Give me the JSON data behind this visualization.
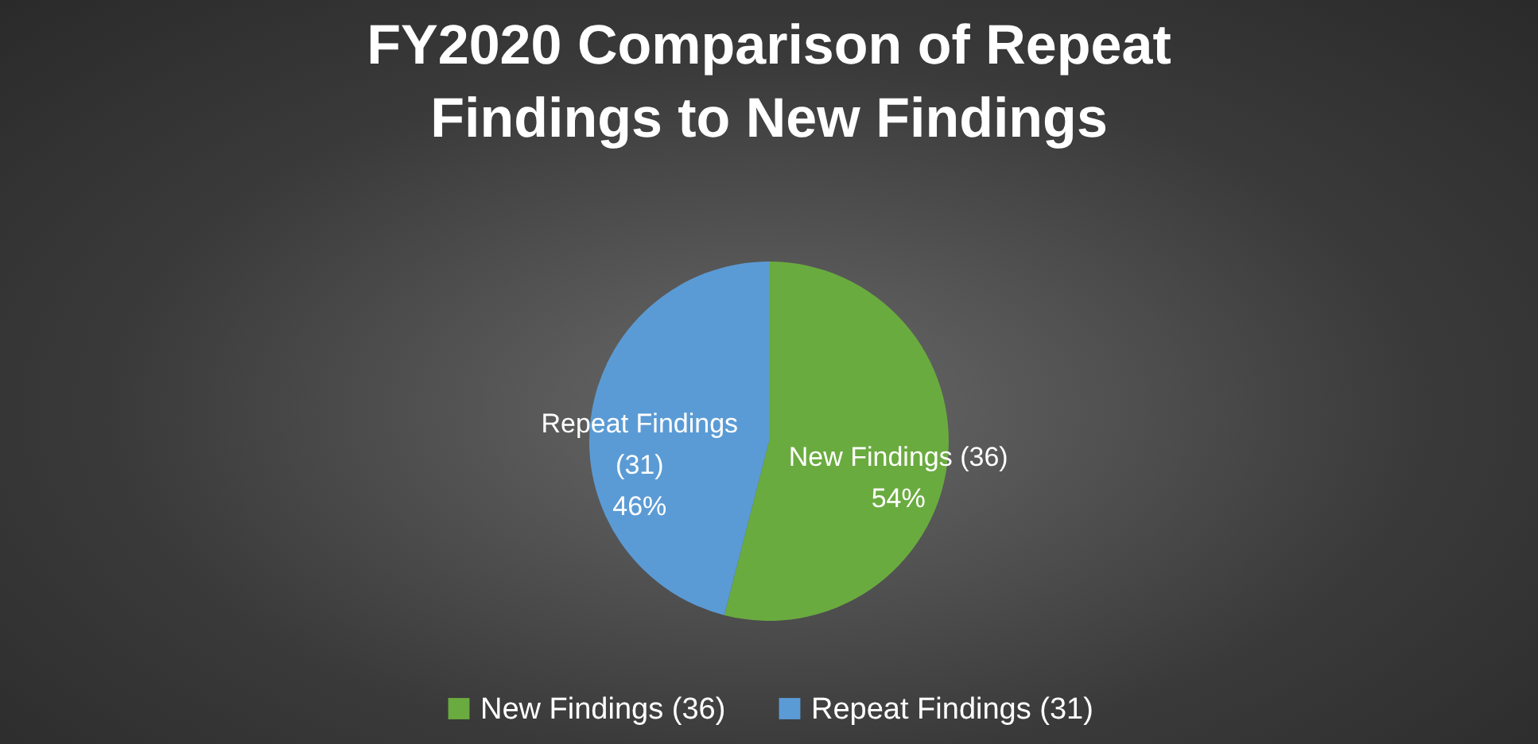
{
  "chart_data": {
    "type": "pie",
    "title": "FY2020 Comparison of Repeat Findings to New Findings",
    "categories": [
      "New Findings (36)",
      "Repeat Findings (31)"
    ],
    "values": [
      54,
      46
    ],
    "value_labels": [
      "54%",
      "46%"
    ],
    "colors": [
      "#6aab3f",
      "#5b9bd5"
    ],
    "legend": "bottom"
  }
}
